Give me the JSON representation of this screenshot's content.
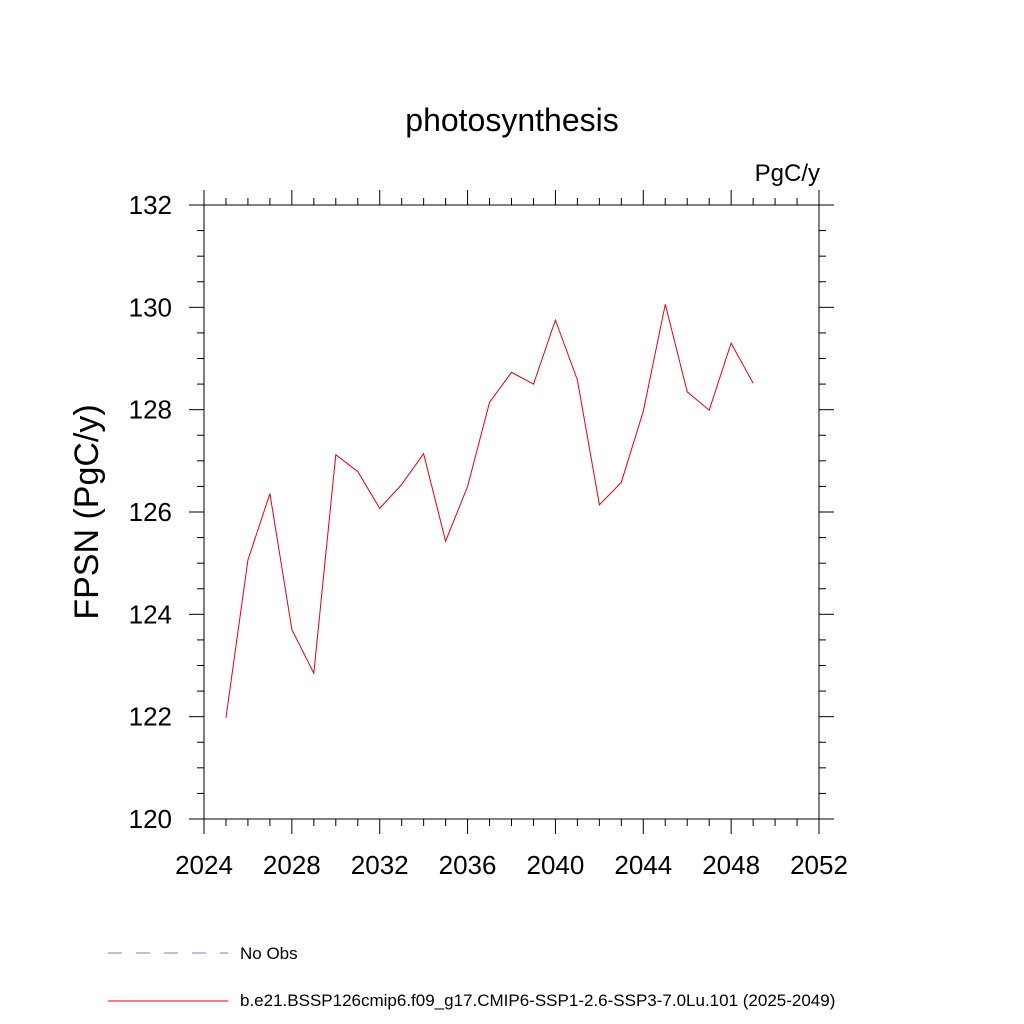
{
  "chart_data": {
    "type": "line",
    "title": "photosynthesis",
    "units_label": "PgC/y",
    "ylabel": "FPSN  (PgC/y)",
    "xlabel": "",
    "xlim": [
      2024,
      2052
    ],
    "ylim": [
      120,
      132
    ],
    "x_ticks": [
      2024,
      2028,
      2032,
      2036,
      2040,
      2044,
      2048,
      2052
    ],
    "y_ticks": [
      120,
      122,
      124,
      126,
      128,
      130,
      132
    ],
    "grid": false,
    "legend_placement": "bottom",
    "series": [
      {
        "name": "b.e21.BSSP126cmip6.f09_g17.CMIP6-SSP1-2.6-SSP3-7.0Lu.101 (2025-2049)",
        "color": "#e8000b",
        "x": [
          2025,
          2026,
          2027,
          2028,
          2029,
          2030,
          2031,
          2032,
          2033,
          2034,
          2035,
          2036,
          2037,
          2038,
          2039,
          2040,
          2041,
          2042,
          2043,
          2044,
          2045,
          2046,
          2047,
          2048,
          2049
        ],
        "y": [
          121.98,
          125.06,
          126.36,
          123.7,
          122.85,
          127.12,
          126.79,
          126.07,
          126.54,
          127.14,
          125.43,
          126.5,
          128.14,
          128.73,
          128.5,
          129.75,
          128.58,
          126.14,
          126.58,
          127.97,
          130.06,
          128.35,
          127.99,
          129.3,
          128.52
        ]
      }
    ],
    "legend": [
      {
        "label": "No Obs",
        "style": "dashed",
        "color": "#8a7fc2"
      },
      {
        "label": "b.e21.BSSP126cmip6.f09_g17.CMIP6-SSP1-2.6-SSP3-7.0Lu.101 (2025-2049)",
        "style": "solid",
        "color": "#e8000b"
      }
    ]
  }
}
